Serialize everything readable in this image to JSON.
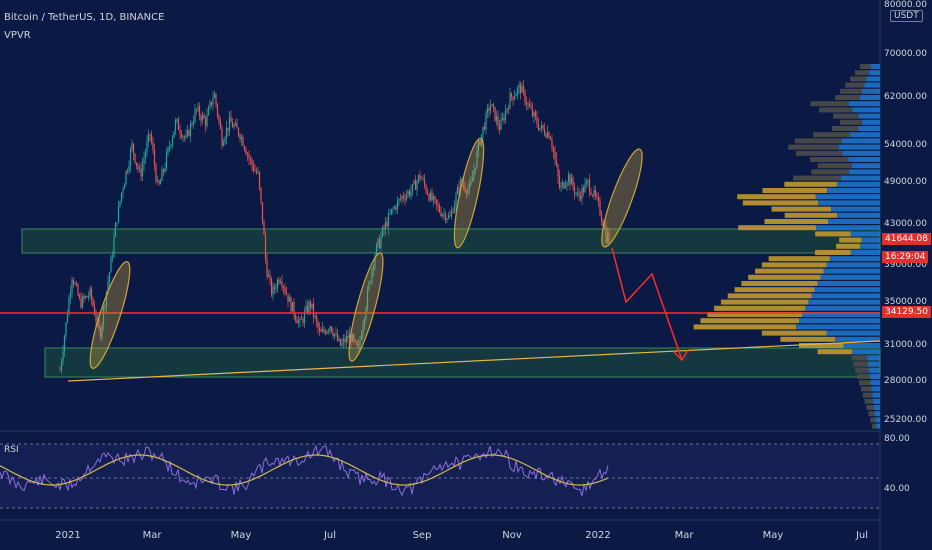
{
  "header": {
    "symbol_line": "Bitcoin / TetherUS, 1D, BINANCE",
    "indicator": "VPVR",
    "currency_label": "USDT"
  },
  "price_axis": {
    "ticks": [
      {
        "label": "80000.00",
        "value": 80000
      },
      {
        "label": "70000.00",
        "value": 70000
      },
      {
        "label": "62000.00",
        "value": 62000
      },
      {
        "label": "54000.00",
        "value": 54000
      },
      {
        "label": "49000.00",
        "value": 49000
      },
      {
        "label": "43000.00",
        "value": 43000
      },
      {
        "label": "39000.00",
        "value": 39000
      },
      {
        "label": "35000.00",
        "value": 35000
      },
      {
        "label": "31000.00",
        "value": 31000
      },
      {
        "label": "28000.00",
        "value": 28000
      },
      {
        "label": "25200.00",
        "value": 25200
      }
    ],
    "current_price": "41644.08",
    "countdown": "16:29:04",
    "hline_price": "34129.50"
  },
  "rsi": {
    "label": "RSI",
    "ticks": [
      "80.00",
      "40.00"
    ]
  },
  "time_axis": {
    "labels": [
      "2021",
      "Mar",
      "May",
      "Jul",
      "Sep",
      "Nov",
      "2022",
      "Mar",
      "May",
      "Jul"
    ]
  },
  "colors": {
    "background": "#0b1a45",
    "up": "#26a69a",
    "down": "#ef5350",
    "zone_fill": "#1f5a3a",
    "ellipse": "#c9a43a",
    "trendline": "#e6b84a",
    "arrow": "#ff2b2b",
    "hline": "#ff2b2b",
    "vp_gold": "#b8922e",
    "vp_blue": "#1e6fc2",
    "vp_dark": "#4a4a4a",
    "rsi_line": "#8a6fd9",
    "rsi_ma": "#d4b94a",
    "price_tag": "#e0302e"
  }
}
